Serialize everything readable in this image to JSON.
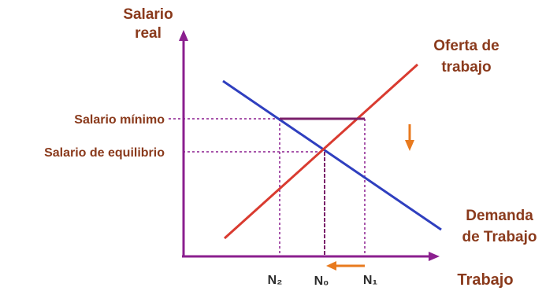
{
  "diagram": {
    "y_axis_label_line1": "Salario",
    "y_axis_label_line2": "real",
    "x_axis_label": "Trabajo",
    "supply_label_line1": "Oferta de",
    "supply_label_line2": "trabajo",
    "demand_label_line1": "Demanda",
    "demand_label_line2": "de Trabajo",
    "wage_min_label": "Salario mínimo",
    "wage_eq_label": "Salario de equilibrio",
    "n2_label": "N₂",
    "n0_label": "N₀",
    "n1_label": "N₁"
  },
  "colors": {
    "axis": "#8b1f8f",
    "supply": "#d93b30",
    "demand": "#2f3fbf",
    "text": "#8a3a1c",
    "guides": "#8b1f8f",
    "minimum_wage": "#7a1f6a",
    "arrow": "#e87a1e"
  }
}
